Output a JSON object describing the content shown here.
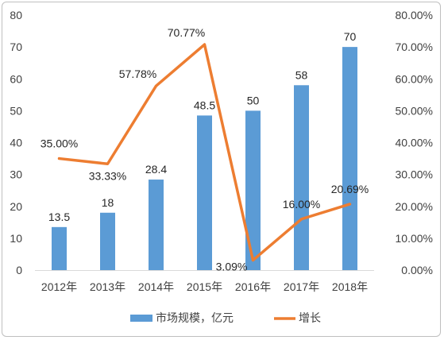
{
  "chart_data": {
    "type": "bar",
    "categories": [
      "2012年",
      "2013年",
      "2014年",
      "2015年",
      "2016年",
      "2017年",
      "2018年"
    ],
    "series": [
      {
        "name": "市场规模，亿元",
        "type": "bar",
        "axis": "left",
        "values": [
          13.5,
          18,
          28.4,
          48.5,
          50,
          58,
          70
        ],
        "labels": [
          "13.5",
          "18",
          "28.4",
          "48.5",
          "50",
          "58",
          "70"
        ],
        "color": "#5b9bd5"
      },
      {
        "name": "增长",
        "type": "line",
        "axis": "right",
        "values": [
          35.0,
          33.33,
          57.78,
          70.77,
          3.09,
          16.0,
          20.69
        ],
        "labels": [
          "35.00%",
          "33.33%",
          "57.78%",
          "70.77%",
          "3.09%",
          "16.00%",
          "20.69%"
        ],
        "color": "#ed7d31"
      }
    ],
    "y_left": {
      "ylim": [
        0,
        80
      ],
      "ticks": [
        "0",
        "10",
        "20",
        "30",
        "40",
        "50",
        "60",
        "70",
        "80"
      ]
    },
    "y_right": {
      "ylim": [
        0,
        80
      ],
      "ticks": [
        "0.00%",
        "10.00%",
        "20.00%",
        "30.00%",
        "40.00%",
        "50.00%",
        "60.00%",
        "70.00%",
        "80.00%"
      ]
    },
    "grid": false,
    "legend_position": "bottom"
  }
}
